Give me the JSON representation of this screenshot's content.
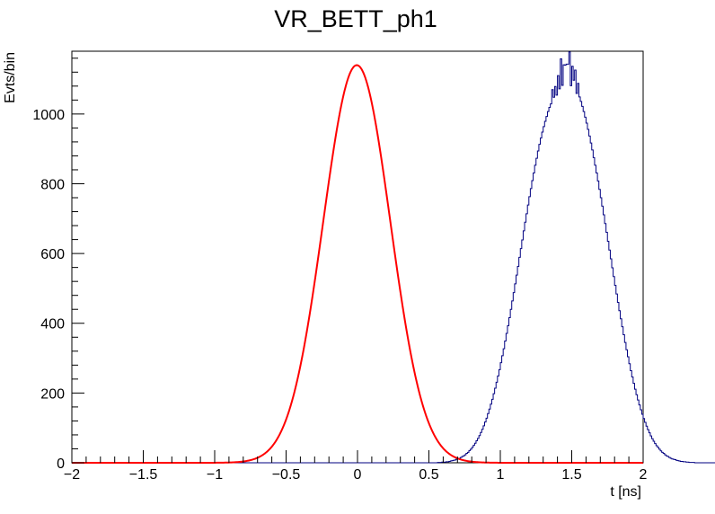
{
  "chart_data": {
    "type": "histogram",
    "title": "VR_BETT_ph1",
    "xlabel": "t [ns]",
    "ylabel": "Evts/bin",
    "xlim": [
      -2,
      2
    ],
    "ylim": [
      0,
      1180
    ],
    "x_ticks": [
      -2,
      -1.5,
      -1,
      -0.5,
      0,
      0.5,
      1,
      1.5,
      2
    ],
    "x_tick_labels": [
      "−2",
      "−1.5",
      "−1",
      "−0.5",
      "0",
      "0.5",
      "1",
      "1.5",
      "2"
    ],
    "y_ticks": [
      0,
      200,
      400,
      600,
      800,
      1000
    ],
    "y_tick_labels": [
      "0",
      "200",
      "400",
      "600",
      "800",
      "1000"
    ],
    "grid": false,
    "legend": "none",
    "series": [
      {
        "kind": "histogram",
        "color": "#000080",
        "bin_width": 0.01,
        "bin_start": -2.0,
        "values": [
          0,
          0,
          0,
          0,
          0,
          0,
          0,
          0,
          0,
          0,
          0,
          0,
          0,
          0,
          0,
          0,
          0,
          0,
          0,
          0,
          0,
          0,
          0,
          0,
          0,
          0,
          0,
          0,
          0,
          0,
          0,
          0,
          0,
          0,
          0,
          0,
          0,
          0,
          0,
          0,
          0,
          0,
          0,
          0,
          0,
          0,
          0,
          0,
          0,
          0,
          0,
          0,
          0,
          0,
          0,
          0,
          0,
          0,
          0,
          0,
          0,
          0,
          0,
          0,
          0,
          0,
          0,
          0,
          0,
          0,
          0,
          0,
          0,
          0,
          0,
          0,
          0,
          0,
          0,
          0,
          0,
          0,
          0,
          0,
          0,
          0,
          0,
          0,
          0,
          0,
          0,
          0,
          0,
          0,
          0,
          0,
          0,
          0,
          0,
          0,
          0,
          0,
          0,
          0,
          0,
          0,
          0,
          0,
          0,
          0,
          0,
          0,
          0,
          0,
          0,
          0,
          0,
          0,
          0,
          0,
          0,
          0,
          0,
          0,
          0,
          0,
          0,
          0,
          0,
          0,
          0,
          0,
          0,
          0,
          0,
          0,
          0,
          0,
          0,
          0,
          0,
          0,
          0,
          0,
          0,
          0,
          0,
          0,
          0,
          0,
          0,
          0,
          0,
          0,
          0,
          0,
          0,
          0,
          0,
          0,
          0,
          0,
          0,
          0,
          0,
          0,
          0,
          0,
          0,
          0,
          0,
          0,
          0,
          0,
          0,
          0,
          0,
          0,
          0,
          0,
          0,
          0,
          0,
          0,
          0,
          0,
          0,
          0,
          0,
          0,
          0,
          0,
          0,
          0,
          0,
          0,
          0,
          0,
          0,
          0,
          0,
          0,
          0,
          0,
          0,
          0,
          0,
          0,
          0,
          0,
          0,
          0,
          0,
          0,
          0,
          0,
          0,
          0,
          0,
          0,
          0,
          0,
          0,
          0,
          0,
          0,
          0,
          0,
          0,
          0,
          0,
          0,
          0,
          0,
          0,
          0,
          0,
          0,
          0,
          0,
          0,
          0,
          0,
          0,
          0,
          0,
          0,
          0,
          0,
          0,
          0,
          0,
          0,
          0,
          0,
          0,
          1,
          1,
          1,
          2,
          2,
          2,
          3,
          3,
          4,
          5,
          6,
          7,
          8,
          10,
          11,
          13,
          15,
          18,
          20,
          23,
          27,
          30,
          35,
          39,
          44,
          50,
          56,
          63,
          70,
          78,
          87,
          96,
          106,
          117,
          128,
          141,
          154,
          168,
          182,
          198,
          214,
          231,
          249,
          267,
          287,
          307,
          327,
          349,
          371,
          393,
          416,
          440,
          464,
          488,
          513,
          538,
          563,
          589,
          614,
          639,
          665,
          690,
          714,
          739,
          763,
          786,
          809,
          831,
          853,
          873,
          894,
          913,
          931,
          948,
          964,
          979,
          993,
          1007,
          1019,
          1029,
          1070,
          1048,
          1079,
          1054,
          1110,
          1072,
          1158,
          1082,
          1141,
          1140,
          1143,
          1143,
          1178,
          1081,
          1137,
          1097,
          1126,
          1059,
          1088,
          1049,
          1036,
          1022,
          1007,
          991,
          974,
          956,
          937,
          917,
          897,
          875,
          853,
          831,
          808,
          784,
          760,
          736,
          711,
          686,
          661,
          635,
          610,
          585,
          559,
          534,
          509,
          484,
          460,
          436,
          413,
          390,
          367,
          345,
          324,
          304,
          284,
          264,
          246,
          228,
          211,
          195,
          180,
          166,
          152,
          139,
          127,
          116,
          105,
          95,
          86,
          77,
          69,
          62,
          55,
          49,
          44,
          39,
          34,
          30,
          27,
          23,
          20,
          18,
          15,
          13,
          11,
          10,
          9,
          7,
          6,
          5,
          4,
          4,
          3,
          3,
          2,
          2,
          1,
          1,
          1,
          1,
          0,
          0,
          0,
          0,
          0,
          0,
          0,
          0,
          0,
          0,
          0,
          0,
          0,
          0,
          0,
          0,
          0,
          0,
          0,
          0,
          0,
          0,
          0,
          0,
          0,
          0,
          0,
          0,
          0,
          0,
          0,
          0,
          0,
          0,
          0,
          0,
          0,
          0,
          0,
          0,
          0,
          0,
          0,
          0,
          0,
          0,
          0,
          0,
          0,
          0,
          0,
          0,
          0,
          0,
          0,
          0,
          0,
          0,
          0,
          0,
          0,
          0,
          0,
          0,
          0,
          0,
          0,
          0,
          0,
          0,
          0,
          0,
          0,
          0,
          0,
          0,
          0,
          0,
          0,
          0,
          0,
          0,
          0,
          0,
          0,
          0,
          0,
          0,
          0,
          0,
          0,
          0,
          0,
          0,
          0,
          0,
          0,
          0,
          0,
          0,
          0,
          0,
          0,
          0,
          0,
          0,
          0,
          0,
          0,
          0,
          0,
          0,
          0,
          0,
          0,
          0,
          0,
          0,
          0,
          0,
          0,
          0,
          0,
          0,
          0,
          0,
          0,
          0,
          0,
          0,
          0,
          0,
          0,
          0,
          0,
          0,
          0,
          0,
          0,
          0,
          0,
          0,
          0,
          0,
          0,
          0,
          0,
          0,
          0,
          0,
          0,
          0,
          0,
          0,
          0,
          0,
          0,
          0,
          0,
          0,
          0,
          0,
          0,
          0,
          0,
          0,
          0,
          0,
          0,
          0,
          0,
          0,
          0,
          0,
          0,
          0,
          0,
          0,
          0,
          0,
          0,
          0,
          0,
          0,
          0,
          0,
          0,
          0,
          0,
          0,
          0,
          0,
          0,
          0,
          0,
          0,
          0,
          0,
          0,
          0,
          0,
          0,
          0,
          0,
          0,
          0,
          0,
          0,
          0,
          0,
          0,
          0,
          0,
          0,
          0,
          0
        ]
      },
      {
        "kind": "gaussian-fit",
        "color": "#ff0000",
        "amplitude": 1140,
        "mean": -0.005,
        "sigma": 0.235
      }
    ]
  }
}
